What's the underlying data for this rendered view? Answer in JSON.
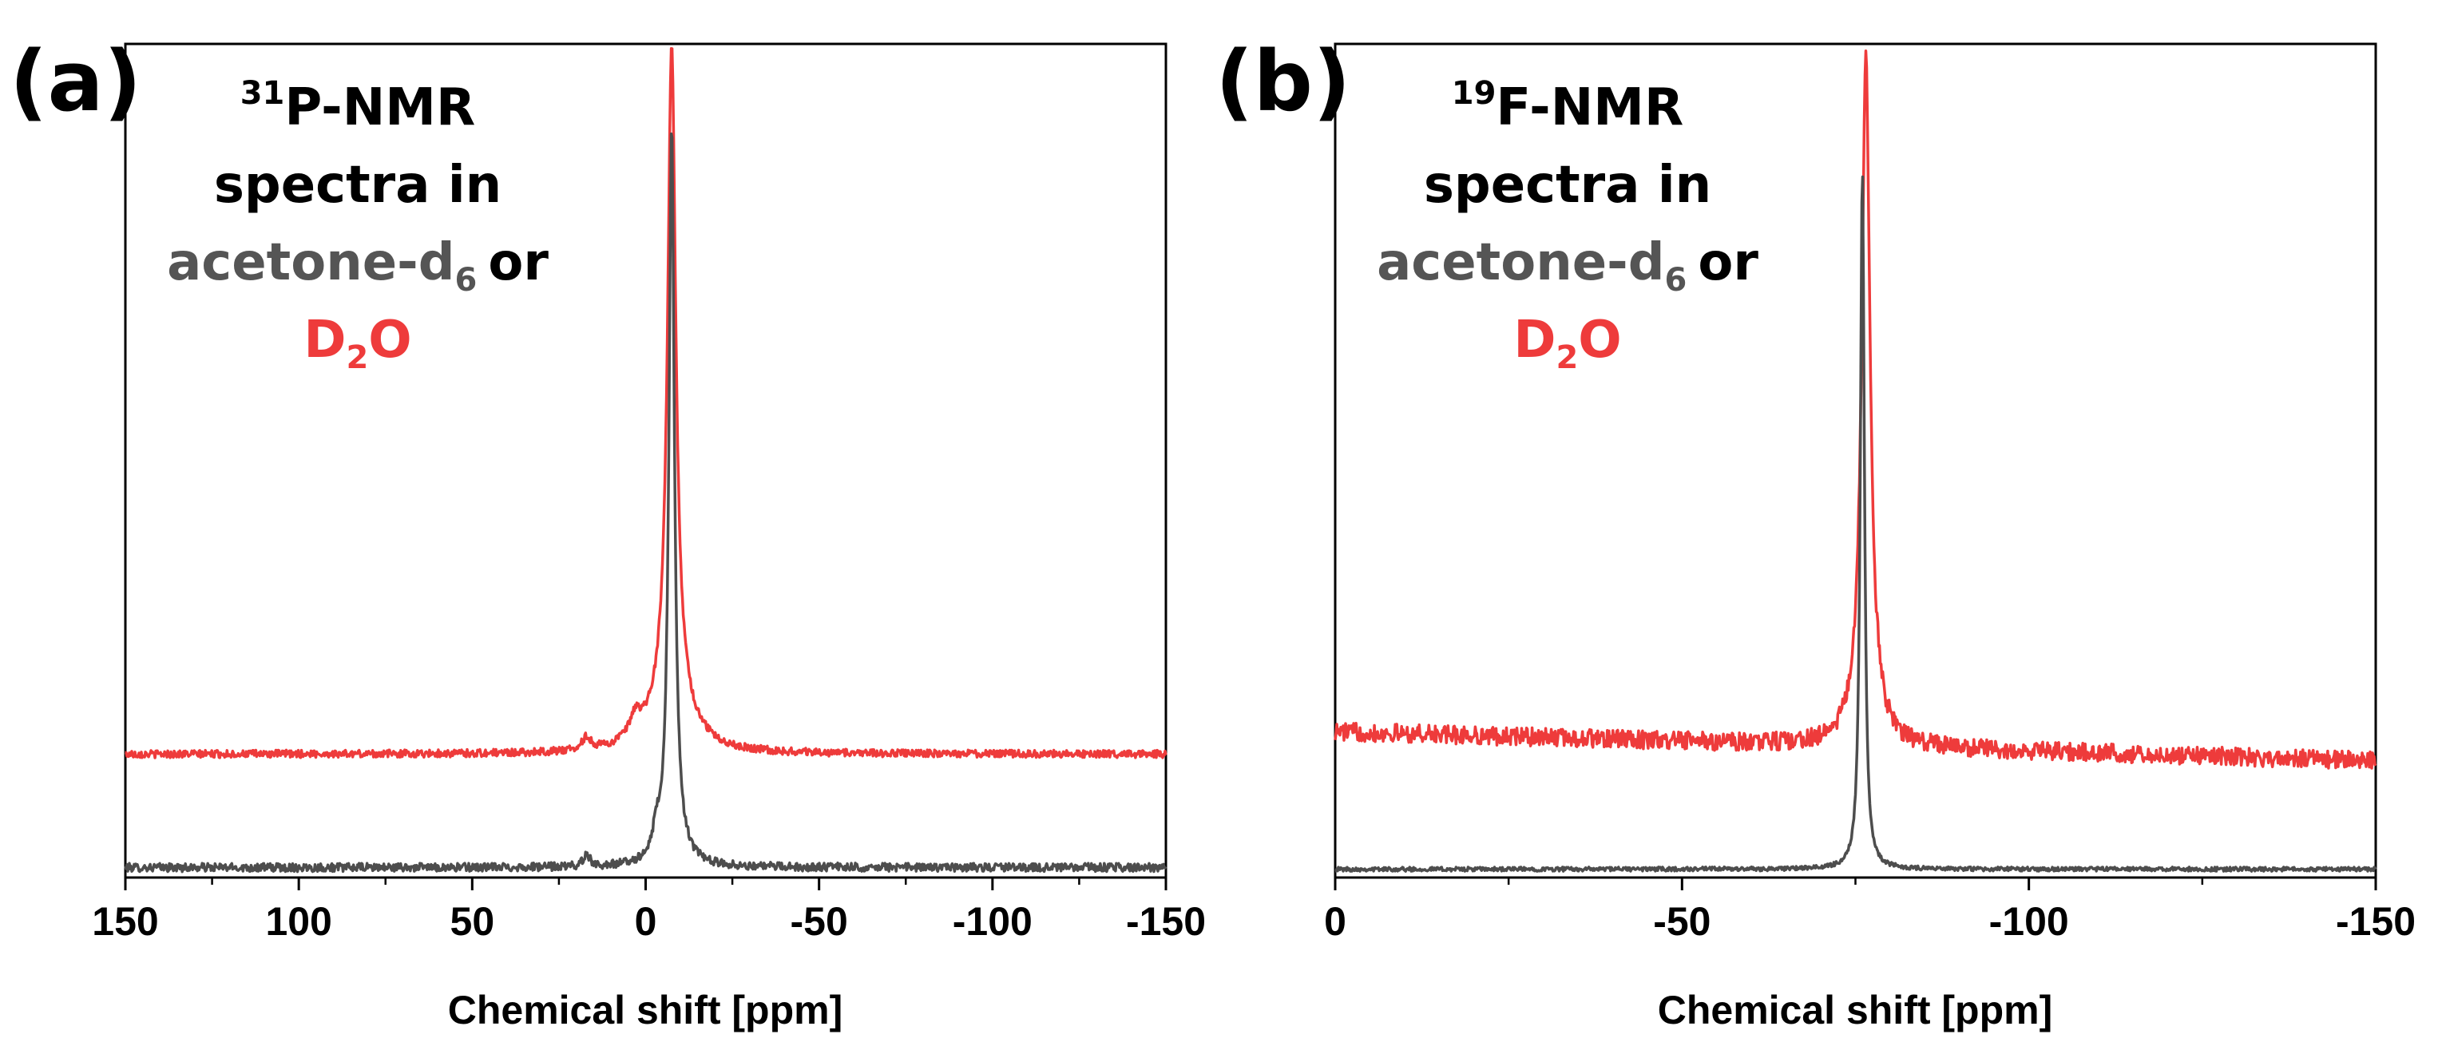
{
  "chart_data": [
    {
      "panel": "(a)",
      "type": "line",
      "xlabel": "Chemical shift [ppm]",
      "xlim": [
        150,
        -150
      ],
      "ylim": [
        0,
        100
      ],
      "x_ticks": [
        150,
        100,
        50,
        0,
        -50,
        -100,
        -150
      ],
      "x_tick_labels": [
        "150",
        "100",
        "50",
        "0",
        "-50",
        "-100",
        "-150"
      ],
      "annotation": {
        "nucleus_sup": "31",
        "nucleus": "P-NMR",
        "line2": "spectra in",
        "solvent1": "acetone-d",
        "solvent1_sub": "6",
        "or_word": "or",
        "solvent2_main": "D",
        "solvent2_sub": "2",
        "solvent2_tail": "O"
      },
      "series": [
        {
          "name": "acetone-d6",
          "color": "#4d4d4d",
          "baseline": 1.2,
          "noise": 0.5,
          "peaks": [
            {
              "x": -7.5,
              "height": 84,
              "width": 0.9
            },
            {
              "x": -7.5,
              "height": 5,
              "width": 3.0
            },
            {
              "x": 17,
              "height": 1.6,
              "width": 1.0
            },
            {
              "x": -3,
              "height": 2.5,
              "width": 1.0
            }
          ]
        },
        {
          "name": "D2O",
          "color": "#ee3b3b",
          "baseline": 14.8,
          "noise": 0.45,
          "peaks": [
            {
              "x": -7.5,
              "height": 78,
              "width": 1.4
            },
            {
              "x": -7.5,
              "height": 7,
              "width": 6.0
            },
            {
              "x": 17,
              "height": 1.5,
              "width": 1.5
            },
            {
              "x": 3,
              "height": 2.5,
              "width": 2.0
            }
          ]
        }
      ]
    },
    {
      "panel": "(b)",
      "type": "line",
      "xlabel": "Chemical shift [ppm]",
      "xlim": [
        0,
        -150
      ],
      "ylim": [
        0,
        100
      ],
      "x_ticks": [
        0,
        -50,
        -100,
        -150
      ],
      "x_tick_labels": [
        "0",
        "-50",
        "-100",
        "-150"
      ],
      "annotation": {
        "nucleus_sup": "19",
        "nucleus": "F-NMR",
        "line2": "spectra in",
        "solvent1": "acetone-d",
        "solvent1_sub": "6",
        "or_word": "or",
        "solvent2_main": "D",
        "solvent2_sub": "2",
        "solvent2_tail": "O"
      },
      "series": [
        {
          "name": "acetone-d6",
          "color": "#4d4d4d",
          "baseline": 1.0,
          "noise": 0.25,
          "peaks": [
            {
              "x": -76,
              "height": 84,
              "width": 0.35
            }
          ]
        },
        {
          "name": "D2O",
          "color": "#ee3b3b",
          "baseline": 17.5,
          "baseline_end": 14.0,
          "noise": 1.1,
          "peaks": [
            {
              "x": -76.5,
              "height": 78,
              "width": 0.7
            },
            {
              "x": -76.5,
              "height": 5,
              "width": 2.0
            }
          ]
        }
      ]
    }
  ]
}
